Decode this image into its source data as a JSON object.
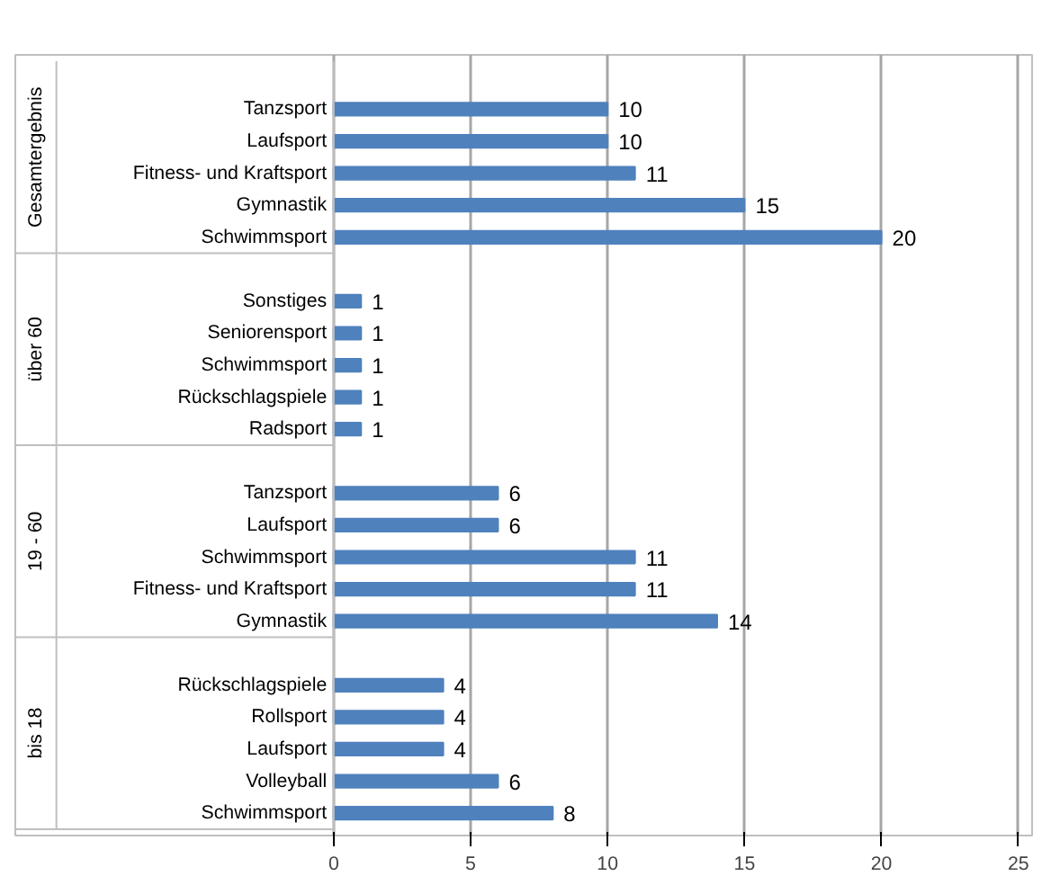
{
  "chart_data": {
    "type": "bar",
    "orientation": "horizontal",
    "categories": [
      null,
      "Tanzsport",
      "Laufsport",
      "Fitness- und Kraftsport",
      "Gymnastik",
      "Schwimmsport",
      null,
      "Sonstiges",
      "Seniorensport",
      "Schwimmsport",
      "Rückschlagspiele",
      "Radsport",
      null,
      "Tanzsport",
      "Laufsport",
      "Schwimmsport",
      "Fitness- und Kraftsport",
      "Gymnastik",
      null,
      "Rückschlagspiele",
      "Rollsport",
      "Laufsport",
      "Volleyball",
      "Schwimmsport"
    ],
    "values": [
      null,
      10,
      10,
      11,
      15,
      20,
      null,
      1,
      1,
      1,
      1,
      1,
      null,
      6,
      6,
      11,
      11,
      14,
      null,
      4,
      4,
      4,
      6,
      8
    ],
    "color": "#4f81bd",
    "annotations": [
      "Gesamtergebnis",
      "über 60",
      "19 - 60",
      "bis 18"
    ],
    "xlim": [
      0,
      25
    ],
    "xticks": [
      0,
      5,
      10,
      15,
      20,
      25
    ],
    "grid": "x",
    "data_labels": true
  }
}
